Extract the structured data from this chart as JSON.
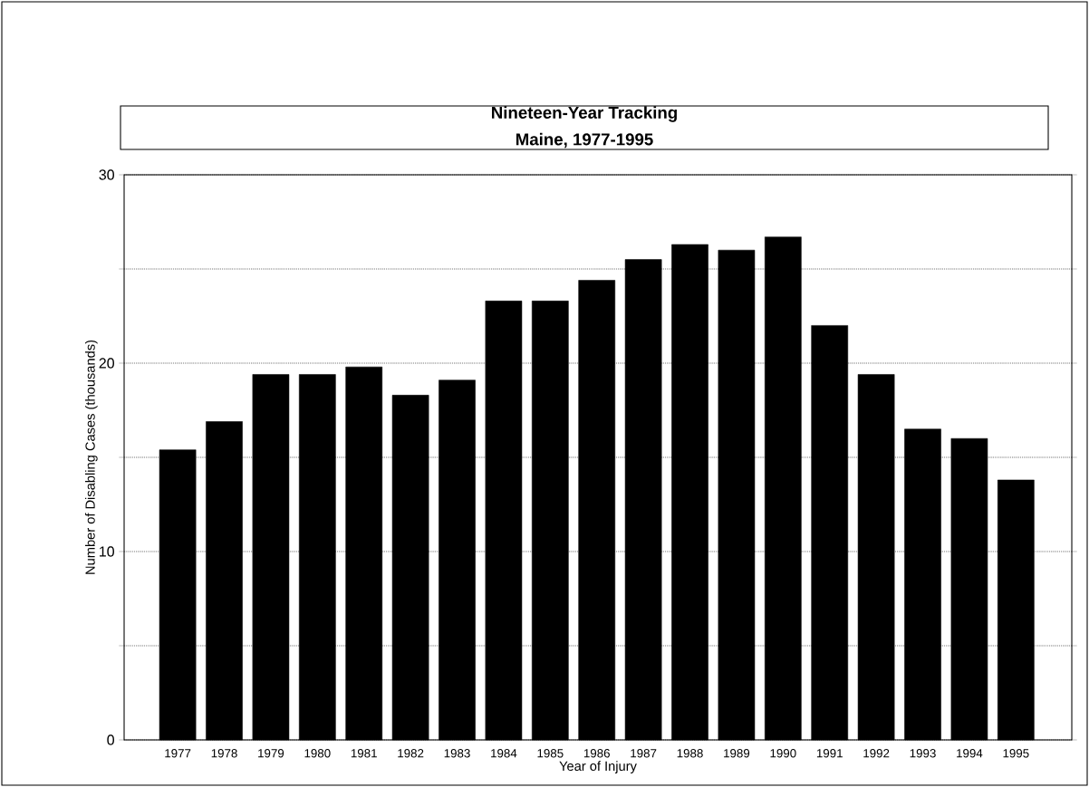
{
  "chart_data": {
    "type": "bar",
    "title": "Nineteen-Year Tracking",
    "subtitle": "Maine, 1977-1995",
    "xlabel": "Year of Injury",
    "ylabel": "Number of Disabling Cases (thousands)",
    "categories": [
      "1977",
      "1978",
      "1979",
      "1980",
      "1981",
      "1982",
      "1983",
      "1984",
      "1985",
      "1986",
      "1987",
      "1988",
      "1989",
      "1990",
      "1991",
      "1992",
      "1993",
      "1994",
      "1995"
    ],
    "values": [
      15.4,
      16.9,
      19.4,
      19.4,
      19.8,
      18.3,
      19.1,
      23.3,
      23.3,
      24.4,
      25.5,
      26.3,
      26.0,
      26.7,
      22.0,
      19.4,
      16.5,
      16.0,
      13.8
    ],
    "color": "#000000",
    "ylim": [
      0,
      30
    ],
    "yticks": [
      0,
      {
        "value": 5,
        "label": null
      },
      10,
      {
        "value": 15,
        "label": null
      },
      20,
      {
        "value": 25,
        "label": null
      },
      30
    ],
    "grid": "y"
  }
}
